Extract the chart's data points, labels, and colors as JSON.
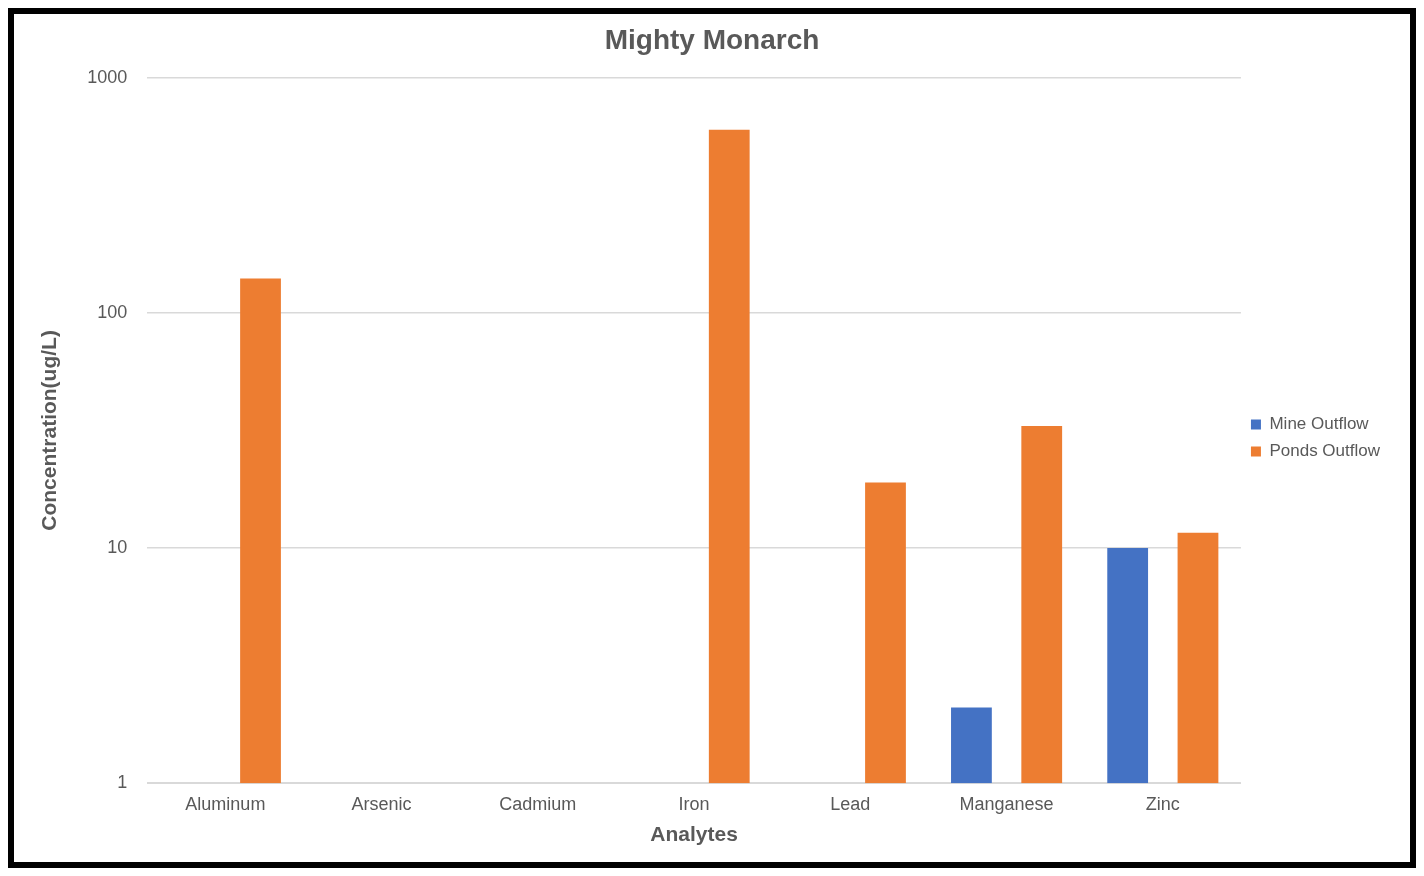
{
  "chart_data": {
    "type": "bar",
    "title": "Mighty Monarch",
    "xlabel": "Analytes",
    "ylabel": "Concentration(ug/L)",
    "categories": [
      "Aluminum",
      "Arsenic",
      "Cadmium",
      "Iron",
      "Lead",
      "Manganese",
      "Zinc"
    ],
    "series": [
      {
        "name": "Mine Outflow",
        "color": "#4472c4",
        "values": [
          null,
          null,
          null,
          null,
          null,
          2.1,
          10
        ]
      },
      {
        "name": "Ponds Outflow",
        "color": "#ed7d31",
        "values": [
          140,
          null,
          null,
          600,
          19,
          33,
          11.6
        ]
      }
    ],
    "log": "y",
    "ylim": [
      1,
      1000
    ],
    "yticks": [
      1,
      10,
      100,
      1000
    ],
    "grid": "y",
    "legend": "right"
  }
}
